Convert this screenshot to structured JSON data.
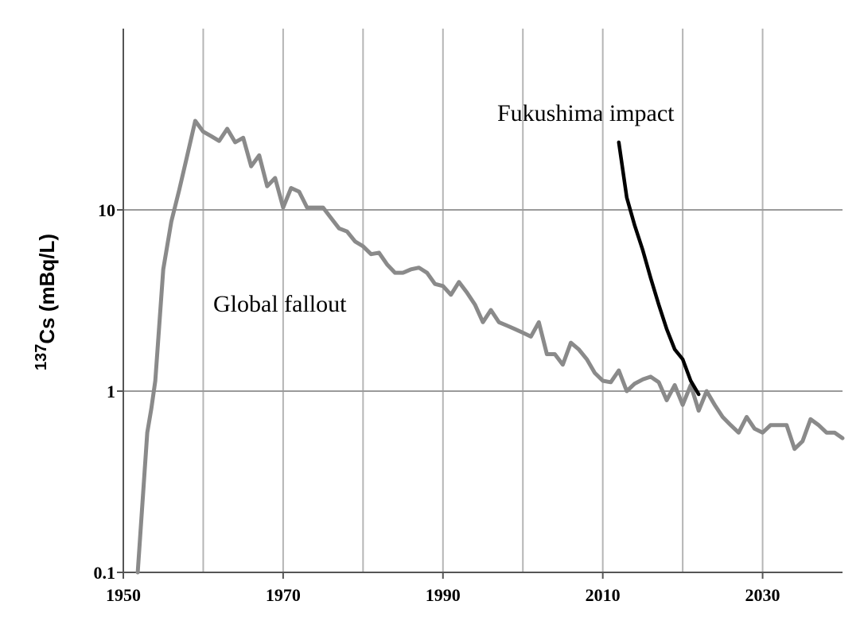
{
  "chart_data": {
    "type": "line",
    "ylabel_sup": "137",
    "ylabel": "Cs (mBq/L)",
    "log_y": true,
    "grid": true,
    "xlim": [
      1950,
      2040
    ],
    "xticks": [
      1950,
      1970,
      1990,
      2010,
      2030
    ],
    "xgrid": [
      1960,
      1970,
      1980,
      1990,
      2000,
      2010,
      2020,
      2030
    ],
    "ylim": [
      0.1,
      100
    ],
    "yticks": [
      0.1,
      1,
      10
    ],
    "series": [
      {
        "name": "Global fallout",
        "color": "#8a8a8a",
        "x": [
          1951.8,
          1953,
          1953.5,
          1954,
          1955,
          1956,
          1957,
          1958,
          1959,
          1960,
          1961,
          1962,
          1963,
          1964,
          1965,
          1966,
          1967,
          1968,
          1969,
          1970,
          1971,
          1972,
          1973,
          1974,
          1975,
          1976,
          1977,
          1978,
          1979,
          1980,
          1981,
          1982,
          1983,
          1984,
          1985,
          1986,
          1987,
          1988,
          1989,
          1990,
          1991,
          1992,
          1993,
          1994,
          1995,
          1996,
          1997,
          1998,
          1999,
          2000,
          2001,
          2002,
          2003,
          2004,
          2005,
          2006,
          2007,
          2008,
          2009,
          2010,
          2011,
          2012,
          2013,
          2014,
          2015,
          2016,
          2017,
          2018,
          2019,
          2020,
          2021,
          2022,
          2023,
          2024,
          2025,
          2026,
          2027,
          2028,
          2029,
          2030,
          2031,
          2032,
          2033,
          2034,
          2035,
          2036,
          2037,
          2038,
          2039,
          2040
        ],
        "values": [
          0.1,
          0.59,
          0.8,
          1.14,
          4.7,
          8.6,
          12.9,
          20,
          31,
          27,
          25.5,
          24,
          28,
          23.6,
          25,
          17.4,
          20,
          13.5,
          15,
          10.3,
          13.2,
          12.6,
          10.3,
          10.3,
          10.3,
          9,
          7.9,
          7.6,
          6.7,
          6.3,
          5.7,
          5.8,
          5.0,
          4.5,
          4.5,
          4.7,
          4.8,
          4.5,
          3.9,
          3.8,
          3.4,
          4.0,
          3.5,
          3.0,
          2.4,
          2.8,
          2.4,
          2.3,
          2.2,
          2.1,
          2.0,
          2.4,
          1.6,
          1.6,
          1.4,
          1.85,
          1.7,
          1.5,
          1.26,
          1.14,
          1.12,
          1.3,
          1.0,
          1.1,
          1.16,
          1.2,
          1.12,
          0.89,
          1.08,
          0.84,
          1.08,
          0.78,
          1.0,
          0.84,
          0.72,
          0.65,
          0.59,
          0.72,
          0.62,
          0.59,
          0.65,
          0.65,
          0.65,
          0.48,
          0.53,
          0.7,
          0.65,
          0.59,
          0.59,
          0.55
        ]
      },
      {
        "name": "Fukushima impact",
        "color": "#000000",
        "x": [
          2012,
          2013,
          2014,
          2015,
          2016,
          2017,
          2018,
          2019,
          2020,
          2021,
          2022
        ],
        "values": [
          23.6,
          11.7,
          8.2,
          6.0,
          4.2,
          3.0,
          2.2,
          1.7,
          1.5,
          1.14,
          0.96
        ]
      }
    ]
  }
}
